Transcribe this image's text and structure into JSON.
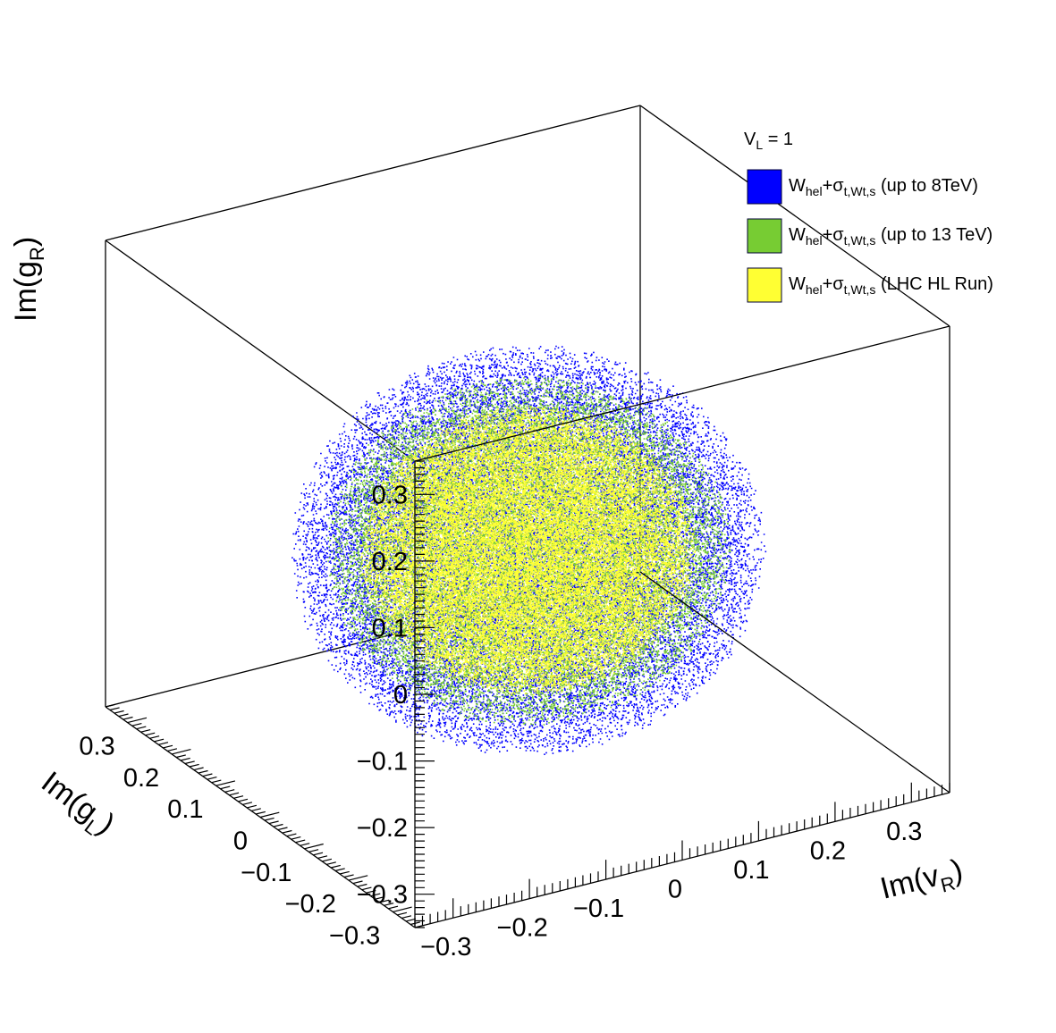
{
  "chart_data": {
    "type": "scatter",
    "projection": "3d",
    "axes": {
      "x": {
        "label_main": "Im(v",
        "label_sub": "R",
        "label_end": ")",
        "range": [
          -0.35,
          0.35
        ],
        "ticks": [
          -0.3,
          -0.2,
          -0.1,
          0,
          0.1,
          0.2,
          0.3
        ],
        "tick_labels": [
          "−0.3",
          "−0.2",
          "−0.1",
          "0",
          "0.1",
          "0.2",
          "0.3"
        ]
      },
      "y": {
        "label_main": "Im(g",
        "label_sub": "L",
        "label_end": ")",
        "range": [
          -0.35,
          0.35
        ],
        "ticks": [
          -0.3,
          -0.2,
          -0.1,
          0,
          0.1,
          0.2,
          0.3
        ],
        "tick_labels": [
          "−0.3",
          "−0.2",
          "−0.1",
          "0",
          "0.1",
          "0.2",
          "0.3"
        ]
      },
      "z": {
        "label_main": "Im(g",
        "label_sub": "R",
        "label_end": ")",
        "range": [
          -0.35,
          0.35
        ],
        "ticks": [
          -0.3,
          -0.2,
          -0.1,
          0,
          0.1,
          0.2,
          0.3
        ],
        "tick_labels": [
          "−0.3",
          "−0.2",
          "−0.1",
          "0",
          "0.1",
          "0.2",
          "0.3"
        ]
      }
    },
    "legend": {
      "placement": "top-right",
      "header_main": "V",
      "header_sub": "L",
      "header_rest": " = 1",
      "entries": [
        {
          "main": "W",
          "sub1": "hel",
          "mid": "+σ",
          "sub2": "t,Wt,s",
          "rest": " (up to 8TeV)",
          "color": "#0000ff"
        },
        {
          "main": "W",
          "sub1": "hel",
          "mid": "+σ",
          "sub2": "t,Wt,s",
          "rest": " (up to 13 TeV)",
          "color": "#77cc33"
        },
        {
          "main": "W",
          "sub1": "hel",
          "mid": "+σ",
          "sub2": "t,Wt,s",
          "rest": " (LHC HL Run)",
          "color": "#ffff33"
        }
      ]
    },
    "series": [
      {
        "color": "#0000ff",
        "center": [
          0,
          0,
          -0.05
        ],
        "radii": [
          0.27,
          0.27,
          0.27
        ],
        "points": 26000
      },
      {
        "color": "#77cc33",
        "center": [
          0,
          0,
          -0.05
        ],
        "radii": [
          0.23,
          0.23,
          0.23
        ],
        "points": 24000
      },
      {
        "color": "#ffff33",
        "center": [
          0,
          0,
          -0.05
        ],
        "radii": [
          0.19,
          0.19,
          0.19
        ],
        "points": 26000
      }
    ]
  }
}
